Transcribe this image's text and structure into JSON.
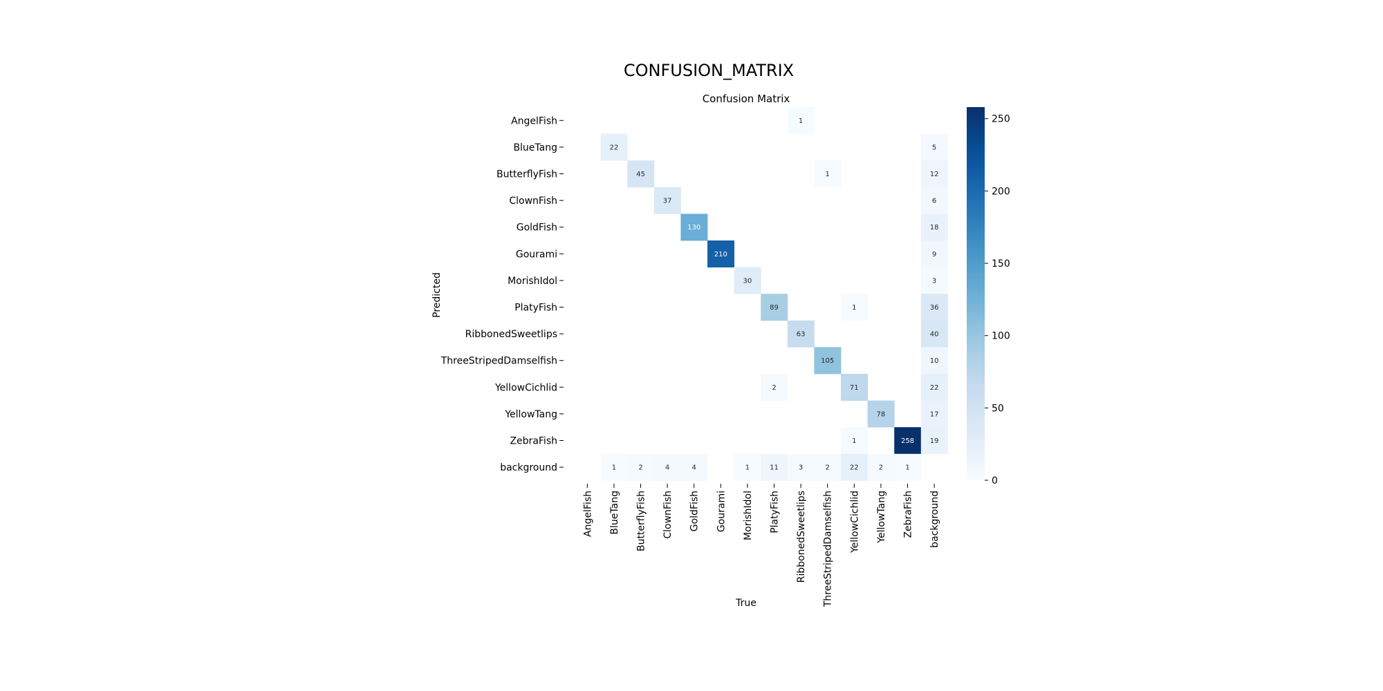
{
  "page_title": "CONFUSION_MATRIX",
  "chart_data": {
    "type": "heatmap",
    "title": "Confusion Matrix",
    "xlabel": "True",
    "ylabel": "Predicted",
    "rows": [
      "AngelFish",
      "BlueTang",
      "ButterflyFish",
      "ClownFish",
      "GoldFish",
      "Gourami",
      "MorishIdol",
      "PlatyFish",
      "RibbonedSweetlips",
      "ThreeStripedDamselfish",
      "YellowCichlid",
      "YellowTang",
      "ZebraFish",
      "background"
    ],
    "columns": [
      "AngelFish",
      "BlueTang",
      "ButterflyFish",
      "ClownFish",
      "GoldFish",
      "Gourami",
      "MorishIdol",
      "PlatyFish",
      "RibbonedSweetlips",
      "ThreeStripedDamselfish",
      "YellowCichlid",
      "YellowTang",
      "ZebraFish",
      "background"
    ],
    "values": [
      [
        null,
        null,
        null,
        null,
        null,
        null,
        null,
        null,
        1,
        null,
        null,
        null,
        null,
        null
      ],
      [
        null,
        22,
        null,
        null,
        null,
        null,
        null,
        null,
        null,
        null,
        null,
        null,
        null,
        5
      ],
      [
        null,
        null,
        45,
        null,
        null,
        null,
        null,
        null,
        null,
        1,
        null,
        null,
        null,
        12
      ],
      [
        null,
        null,
        null,
        37,
        null,
        null,
        null,
        null,
        null,
        null,
        null,
        null,
        null,
        6
      ],
      [
        null,
        null,
        null,
        null,
        130,
        null,
        null,
        null,
        null,
        null,
        null,
        null,
        null,
        18
      ],
      [
        null,
        null,
        null,
        null,
        null,
        210,
        null,
        null,
        null,
        null,
        null,
        null,
        null,
        9
      ],
      [
        null,
        null,
        null,
        null,
        null,
        null,
        30,
        null,
        null,
        null,
        null,
        null,
        null,
        3
      ],
      [
        null,
        null,
        null,
        null,
        null,
        null,
        null,
        89,
        null,
        null,
        1,
        null,
        null,
        36
      ],
      [
        null,
        null,
        null,
        null,
        null,
        null,
        null,
        null,
        63,
        null,
        null,
        null,
        null,
        40
      ],
      [
        null,
        null,
        null,
        null,
        null,
        null,
        null,
        null,
        null,
        105,
        null,
        null,
        null,
        10
      ],
      [
        null,
        null,
        null,
        null,
        null,
        null,
        null,
        2,
        null,
        null,
        71,
        null,
        null,
        22
      ],
      [
        null,
        null,
        null,
        null,
        null,
        null,
        null,
        null,
        null,
        null,
        null,
        78,
        null,
        17
      ],
      [
        null,
        null,
        null,
        null,
        null,
        null,
        null,
        null,
        null,
        null,
        1,
        null,
        258,
        19
      ],
      [
        null,
        1,
        2,
        4,
        4,
        null,
        1,
        11,
        3,
        2,
        22,
        2,
        1,
        null
      ]
    ],
    "colorbar": {
      "min": 0,
      "max": 258,
      "ticks": [
        0,
        50,
        100,
        150,
        200,
        250
      ]
    },
    "colormap": "Blues",
    "grid": false
  }
}
